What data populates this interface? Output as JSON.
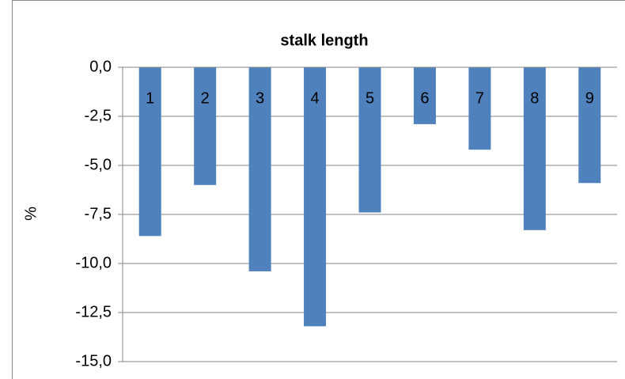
{
  "chart_data": {
    "type": "bar",
    "title": "stalk length",
    "y_label": "%",
    "categories": [
      "1",
      "2",
      "3",
      "4",
      "5",
      "6",
      "7",
      "8",
      "9"
    ],
    "values": [
      -8.6,
      -6.0,
      -10.4,
      -13.2,
      -7.4,
      -2.9,
      -4.2,
      -8.3,
      -5.9
    ],
    "color": "#4f81bd",
    "ylim": [
      -15,
      0
    ],
    "yticks": [
      {
        "value": 0,
        "label": "0,0"
      },
      {
        "value": -2.5,
        "label": "-2,5"
      },
      {
        "value": -5,
        "label": "-5,0"
      },
      {
        "value": -7.5,
        "label": "-7,5"
      },
      {
        "value": -10,
        "label": "-10,0"
      },
      {
        "value": -12.5,
        "label": "-12,5"
      },
      {
        "value": -15,
        "label": "-15,0"
      }
    ],
    "grid": true
  }
}
